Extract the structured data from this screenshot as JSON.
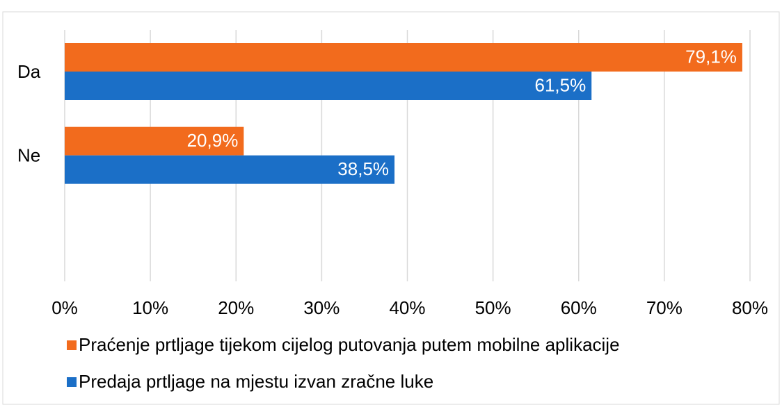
{
  "chart_data": {
    "type": "bar",
    "orientation": "horizontal",
    "categories": [
      "Da",
      "Ne",
      null
    ],
    "series": [
      {
        "name": "Praćenje prtljage tijekom cijelog putovanja putem mobilne aplikacije",
        "color": "#f26b1d",
        "values": [
          79.1,
          20.9,
          null
        ],
        "value_labels": [
          "79,1%",
          "20,9%",
          null
        ]
      },
      {
        "name": "Predaja prtljage na mjestu izvan zračne luke",
        "color": "#1b6fc7",
        "values": [
          61.5,
          38.5,
          null
        ],
        "value_labels": [
          "61,5%",
          "38,5%",
          null
        ]
      }
    ],
    "xlim": [
      0,
      80
    ],
    "xticks": [
      {
        "value": 0,
        "label": "0%"
      },
      {
        "value": 10,
        "label": "10%"
      },
      {
        "value": 20,
        "label": "20%"
      },
      {
        "value": 30,
        "label": "30%"
      },
      {
        "value": 40,
        "label": "40%"
      },
      {
        "value": 50,
        "label": "50%"
      },
      {
        "value": 60,
        "label": "60%"
      },
      {
        "value": 70,
        "label": "70%"
      },
      {
        "value": 80,
        "label": "80%"
      }
    ],
    "grid": true,
    "legend": "bottom"
  }
}
